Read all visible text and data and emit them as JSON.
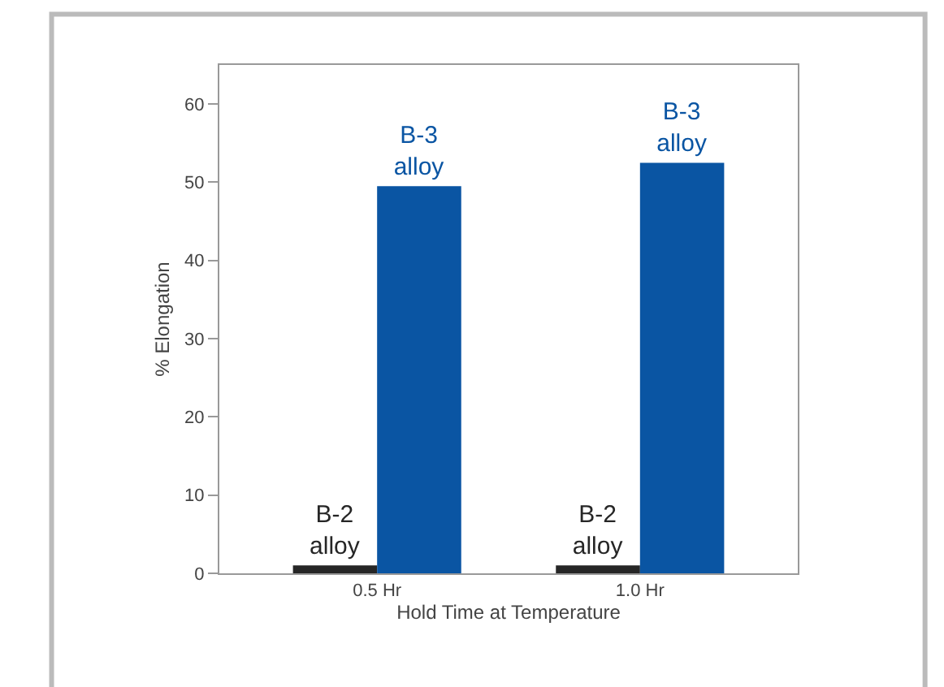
{
  "chart_data": {
    "type": "bar",
    "xlabel": "Hold Time at Temperature",
    "ylabel": "% Elongation",
    "categories": [
      "0.5 Hr",
      "1.0 Hr"
    ],
    "series": [
      {
        "name": "B-2\nalloy",
        "color": "#262626",
        "values": [
          1,
          1
        ]
      },
      {
        "name": "B-3\nalloy",
        "color": "#0a55a3",
        "values": [
          49.5,
          52.5
        ]
      }
    ],
    "ylim": [
      0,
      65
    ],
    "yticks": [
      0,
      10,
      20,
      30,
      40,
      50,
      60
    ],
    "legend": false
  }
}
